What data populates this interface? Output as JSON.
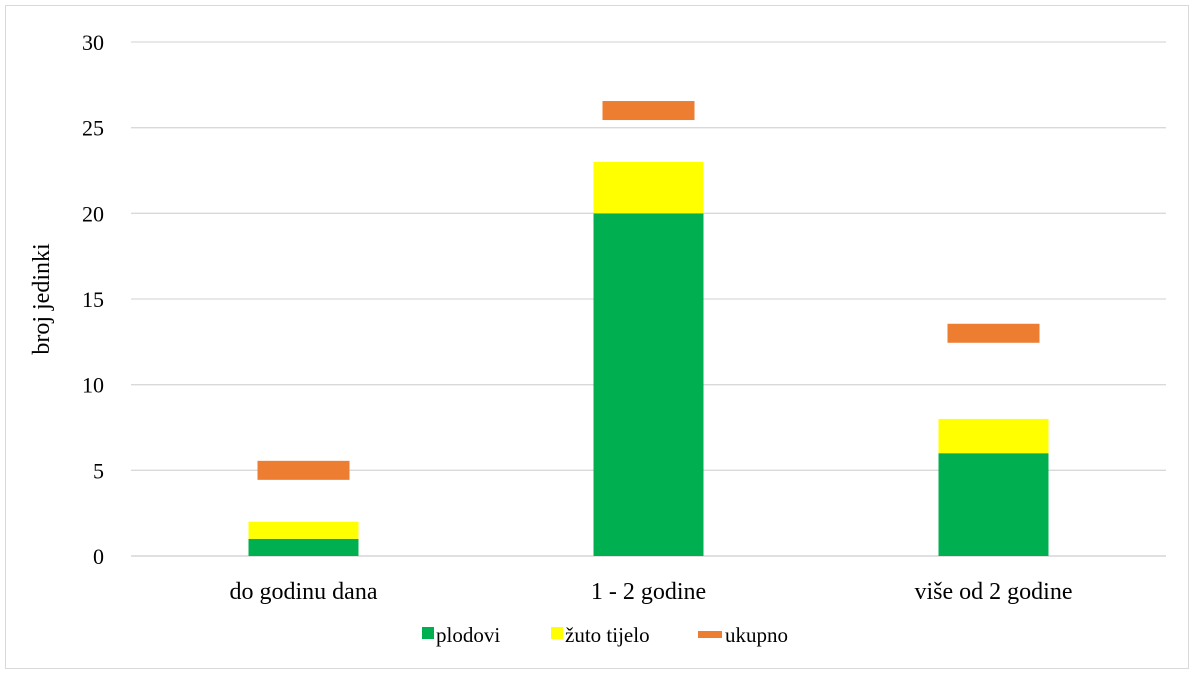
{
  "chart_data": {
    "type": "bar",
    "stacked": true,
    "title": "",
    "xlabel": "",
    "ylabel": "broj jedinki",
    "ylim": [
      0,
      30
    ],
    "yticks": [
      0,
      5,
      10,
      15,
      20,
      25,
      30
    ],
    "ytick_labels": [
      "0",
      "5",
      "10",
      "15",
      "20",
      "25",
      "30"
    ],
    "grid": true,
    "legend_position": "bottom",
    "categories": [
      "do godinu dana",
      "1 - 2 godine",
      "više od 2 godine"
    ],
    "series": [
      {
        "name": "plodovi",
        "kind": "bar",
        "color": "#00b050",
        "values": [
          1,
          20,
          6
        ]
      },
      {
        "name": "žuto tijelo",
        "kind": "bar",
        "color": "#ffff00",
        "values": [
          1,
          3,
          2
        ]
      },
      {
        "name": "ukupno",
        "kind": "marker",
        "color": "#ed7d31",
        "values": [
          5,
          26,
          13
        ]
      }
    ]
  }
}
